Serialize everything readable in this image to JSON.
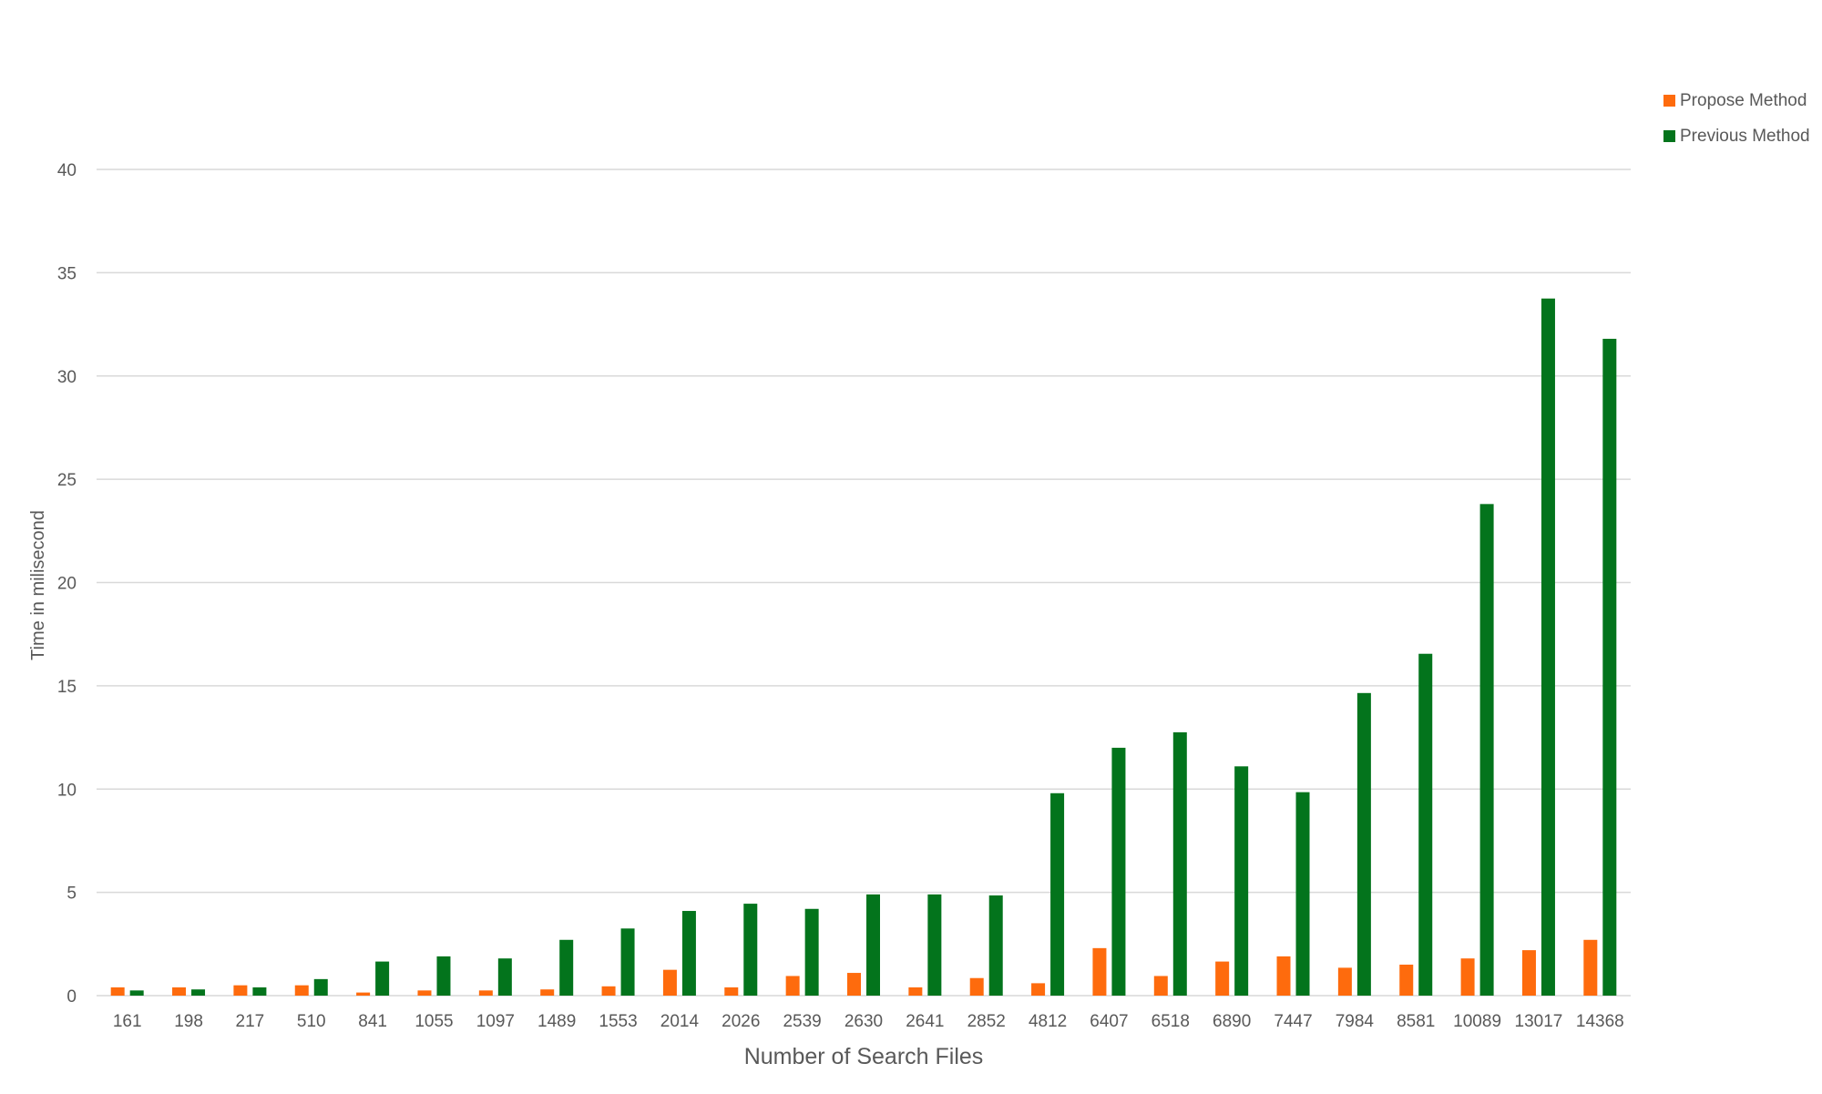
{
  "chart_data": {
    "type": "bar",
    "title": "",
    "xlabel": "Number of Search Files",
    "ylabel": "Time in milisecond",
    "ylim": [
      0,
      40
    ],
    "yticks": [
      0,
      5,
      10,
      15,
      20,
      25,
      30,
      35,
      40
    ],
    "grid": true,
    "legend_position": "top-right",
    "categories": [
      "161",
      "198",
      "217",
      "510",
      "841",
      "1055",
      "1097",
      "1489",
      "1553",
      "2014",
      "2026",
      "2539",
      "2630",
      "2641",
      "2852",
      "4812",
      "6407",
      "6518",
      "6890",
      "7447",
      "7984",
      "8581",
      "10089",
      "13017",
      "14368"
    ],
    "series": [
      {
        "name": "Propose Method",
        "color": "#fe6b0d",
        "values": [
          0.4,
          0.4,
          0.5,
          0.5,
          0.15,
          0.25,
          0.25,
          0.3,
          0.45,
          1.25,
          0.4,
          0.95,
          1.1,
          0.4,
          0.85,
          0.6,
          2.3,
          0.95,
          1.65,
          1.9,
          1.35,
          1.5,
          1.8,
          2.2,
          2.7
        ]
      },
      {
        "name": "Previous Method",
        "color": "#03741c",
        "values": [
          0.25,
          0.3,
          0.4,
          0.8,
          1.65,
          1.9,
          1.8,
          2.7,
          3.25,
          4.1,
          4.45,
          4.2,
          4.9,
          4.9,
          4.85,
          9.8,
          12.0,
          12.75,
          11.1,
          9.85,
          14.65,
          16.55,
          23.8,
          33.75,
          31.8
        ]
      }
    ]
  }
}
